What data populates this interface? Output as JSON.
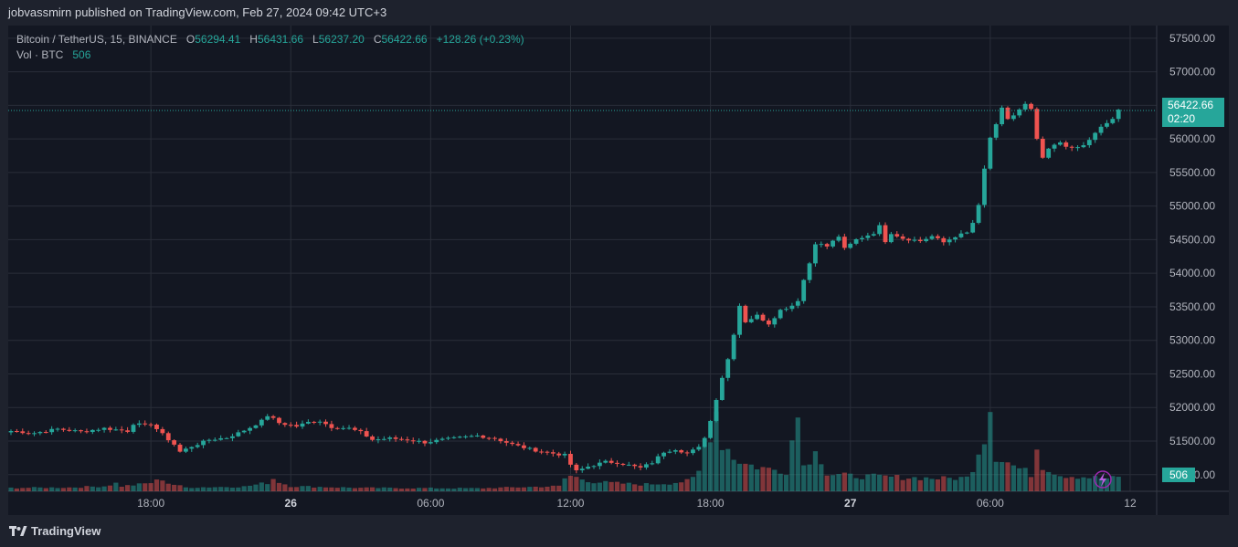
{
  "header": {
    "publisher_line": "jobvassmirn published on TradingView.com, Feb 27, 2024 09:42 UTC+3"
  },
  "legend": {
    "symbol": "Bitcoin / TetherUS, 15, BINANCE",
    "o_label": "O",
    "o_value": "56294.41",
    "h_label": "H",
    "h_value": "56431.66",
    "l_label": "L",
    "l_value": "56237.20",
    "c_label": "C",
    "c_value": "56422.66",
    "change": "+128.26 (+0.23%)",
    "vol_label": "Vol · BTC",
    "vol_value": "506"
  },
  "last_price": {
    "price": "56422.66",
    "countdown": "02:20",
    "volume": "506"
  },
  "footer": {
    "brand": "TradingView"
  },
  "colors": {
    "up": "#26a69a",
    "down": "#ef5350",
    "background": "#131722",
    "grid": "#2a2e39",
    "text": "#b2b5be"
  },
  "chart_data": {
    "type": "candlestick",
    "interval_minutes": 15,
    "y_ticks": [
      51000,
      51500,
      52000,
      52500,
      53000,
      53500,
      54000,
      54500,
      55000,
      55500,
      56000,
      56500,
      57000,
      57500
    ],
    "y_tick_labels": [
      "51000.00",
      "51500.00",
      "52000.00",
      "52500.00",
      "53000.00",
      "53500.00",
      "54000.00",
      "54500.00",
      "55000.00",
      "55500.00",
      "56000.00",
      "56500.00",
      "57000.00",
      "57500.00"
    ],
    "ylim": [
      50480,
      57620
    ],
    "x_tick_labels": [
      {
        "label": "18:00",
        "bar": 24
      },
      {
        "label": "26",
        "bar": 48,
        "bold": true
      },
      {
        "label": "06:00",
        "bar": 72
      },
      {
        "label": "12:00",
        "bar": 96
      },
      {
        "label": "18:00",
        "bar": 120
      },
      {
        "label": "27",
        "bar": 144,
        "bold": true
      },
      {
        "label": "06:00",
        "bar": 168
      },
      {
        "label": "12",
        "bar": 192
      }
    ],
    "price_path": [
      [
        0,
        51650
      ],
      [
        4,
        51620
      ],
      [
        8,
        51680
      ],
      [
        12,
        51640
      ],
      [
        16,
        51690
      ],
      [
        20,
        51650
      ],
      [
        21,
        51760
      ],
      [
        23,
        51730
      ],
      [
        24,
        51760
      ],
      [
        26,
        51600
      ],
      [
        28,
        51450
      ],
      [
        29,
        51340
      ],
      [
        31,
        51420
      ],
      [
        34,
        51520
      ],
      [
        37,
        51550
      ],
      [
        39,
        51620
      ],
      [
        41,
        51700
      ],
      [
        43,
        51800
      ],
      [
        44,
        51880
      ],
      [
        45,
        51830
      ],
      [
        46,
        51770
      ],
      [
        49,
        51720
      ],
      [
        51,
        51780
      ],
      [
        53,
        51800
      ],
      [
        55,
        51710
      ],
      [
        58,
        51690
      ],
      [
        60,
        51630
      ],
      [
        62,
        51520
      ],
      [
        65,
        51540
      ],
      [
        68,
        51520
      ],
      [
        71,
        51480
      ],
      [
        74,
        51520
      ],
      [
        77,
        51550
      ],
      [
        80,
        51580
      ],
      [
        83,
        51540
      ],
      [
        86,
        51450
      ],
      [
        89,
        51380
      ],
      [
        92,
        51330
      ],
      [
        95,
        51290
      ],
      [
        96,
        51150
      ],
      [
        97,
        51050
      ],
      [
        99,
        51120
      ],
      [
        102,
        51190
      ],
      [
        104,
        51180
      ],
      [
        106,
        51140
      ],
      [
        108,
        51100
      ],
      [
        110,
        51180
      ],
      [
        112,
        51340
      ],
      [
        114,
        51380
      ],
      [
        116,
        51320
      ],
      [
        118,
        51400
      ],
      [
        119,
        51560
      ],
      [
        120,
        51800
      ],
      [
        121,
        52130
      ],
      [
        122,
        52450
      ],
      [
        123,
        52720
      ],
      [
        124,
        53100
      ],
      [
        125,
        53520
      ],
      [
        126,
        53280
      ],
      [
        128,
        53370
      ],
      [
        130,
        53250
      ],
      [
        132,
        53450
      ],
      [
        134,
        53520
      ],
      [
        135,
        53600
      ],
      [
        136,
        53900
      ],
      [
        137,
        54150
      ],
      [
        138,
        54450
      ],
      [
        140,
        54400
      ],
      [
        142,
        54550
      ],
      [
        143,
        54360
      ],
      [
        145,
        54500
      ],
      [
        148,
        54600
      ],
      [
        149,
        54700
      ],
      [
        150,
        54480
      ],
      [
        151,
        54600
      ],
      [
        153,
        54520
      ],
      [
        156,
        54480
      ],
      [
        158,
        54550
      ],
      [
        160,
        54460
      ],
      [
        162,
        54550
      ],
      [
        164,
        54600
      ],
      [
        165,
        54750
      ],
      [
        166,
        55000
      ],
      [
        167,
        55550
      ],
      [
        168,
        56020
      ],
      [
        169,
        56200
      ],
      [
        170,
        56450
      ],
      [
        171,
        56300
      ],
      [
        172,
        56350
      ],
      [
        174,
        56510
      ],
      [
        175,
        56430
      ],
      [
        176,
        56000
      ],
      [
        177,
        55700
      ],
      [
        178,
        55850
      ],
      [
        180,
        55950
      ],
      [
        182,
        55850
      ],
      [
        184,
        55900
      ],
      [
        185,
        55990
      ],
      [
        187,
        56170
      ],
      [
        189,
        56300
      ],
      [
        190,
        56420
      ]
    ],
    "volume_path": [
      [
        0,
        40
      ],
      [
        10,
        45
      ],
      [
        16,
        60
      ],
      [
        18,
        95
      ],
      [
        19,
        60
      ],
      [
        22,
        80
      ],
      [
        24,
        100
      ],
      [
        26,
        145
      ],
      [
        27,
        95
      ],
      [
        30,
        45
      ],
      [
        40,
        55
      ],
      [
        44,
        100
      ],
      [
        45,
        150
      ],
      [
        46,
        110
      ],
      [
        48,
        60
      ],
      [
        60,
        40
      ],
      [
        80,
        35
      ],
      [
        94,
        60
      ],
      [
        95,
        150
      ],
      [
        96,
        180
      ],
      [
        100,
        110
      ],
      [
        108,
        80
      ],
      [
        113,
        95
      ],
      [
        116,
        120
      ],
      [
        117,
        150
      ],
      [
        118,
        230
      ],
      [
        119,
        520
      ],
      [
        120,
        700
      ],
      [
        121,
        950
      ],
      [
        122,
        560
      ],
      [
        123,
        500
      ],
      [
        124,
        400
      ],
      [
        126,
        320
      ],
      [
        130,
        260
      ],
      [
        133,
        240
      ],
      [
        134,
        600
      ],
      [
        135,
        880
      ],
      [
        136,
        380
      ],
      [
        137,
        300
      ],
      [
        138,
        560
      ],
      [
        140,
        200
      ],
      [
        144,
        180
      ],
      [
        160,
        150
      ],
      [
        164,
        160
      ],
      [
        165,
        280
      ],
      [
        166,
        480
      ],
      [
        167,
        650
      ],
      [
        168,
        1000
      ],
      [
        169,
        420
      ],
      [
        170,
        380
      ],
      [
        172,
        300
      ],
      [
        175,
        200
      ],
      [
        176,
        520
      ],
      [
        177,
        300
      ],
      [
        180,
        190
      ],
      [
        188,
        150
      ],
      [
        190,
        160
      ]
    ],
    "volume_ylim": [
      0,
      1500
    ],
    "current_price": 56422.66
  }
}
